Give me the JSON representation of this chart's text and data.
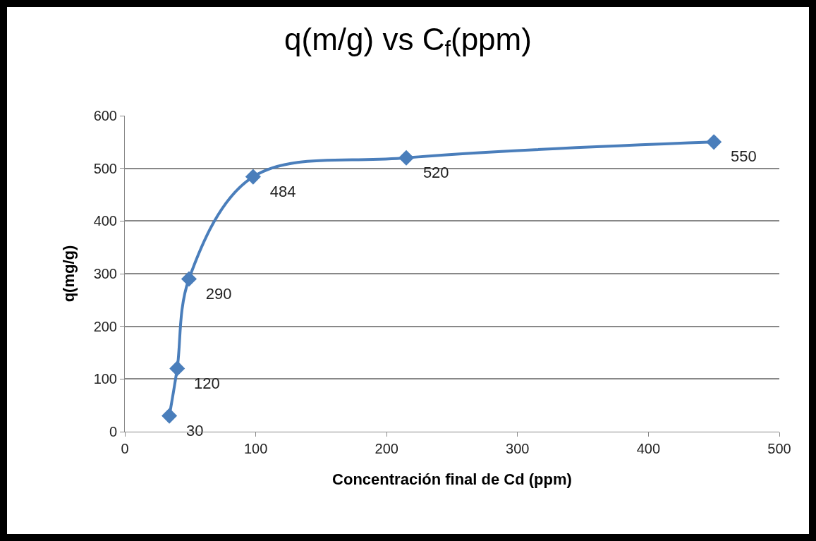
{
  "chart_data": {
    "type": "line",
    "title": "q(m/g) vs C$_{f}$(ppm)",
    "xlabel": "Concentración final de Cd (ppm)",
    "ylabel": "q(mg/g)",
    "x": [
      34,
      40,
      49,
      98,
      215,
      450
    ],
    "series": [
      {
        "color": "#4a7ebb",
        "values": [
          30,
          120,
          290,
          484,
          520,
          550
        ]
      }
    ],
    "data_labels": true,
    "marker": "diamond",
    "line_style": "solid",
    "grid": "y",
    "xlim": [
      0,
      500
    ],
    "xticks": [
      0,
      100,
      200,
      300,
      400,
      500
    ],
    "ylim": [
      0,
      600
    ],
    "yticks": [
      0,
      100,
      200,
      300,
      400,
      500,
      600
    ]
  }
}
